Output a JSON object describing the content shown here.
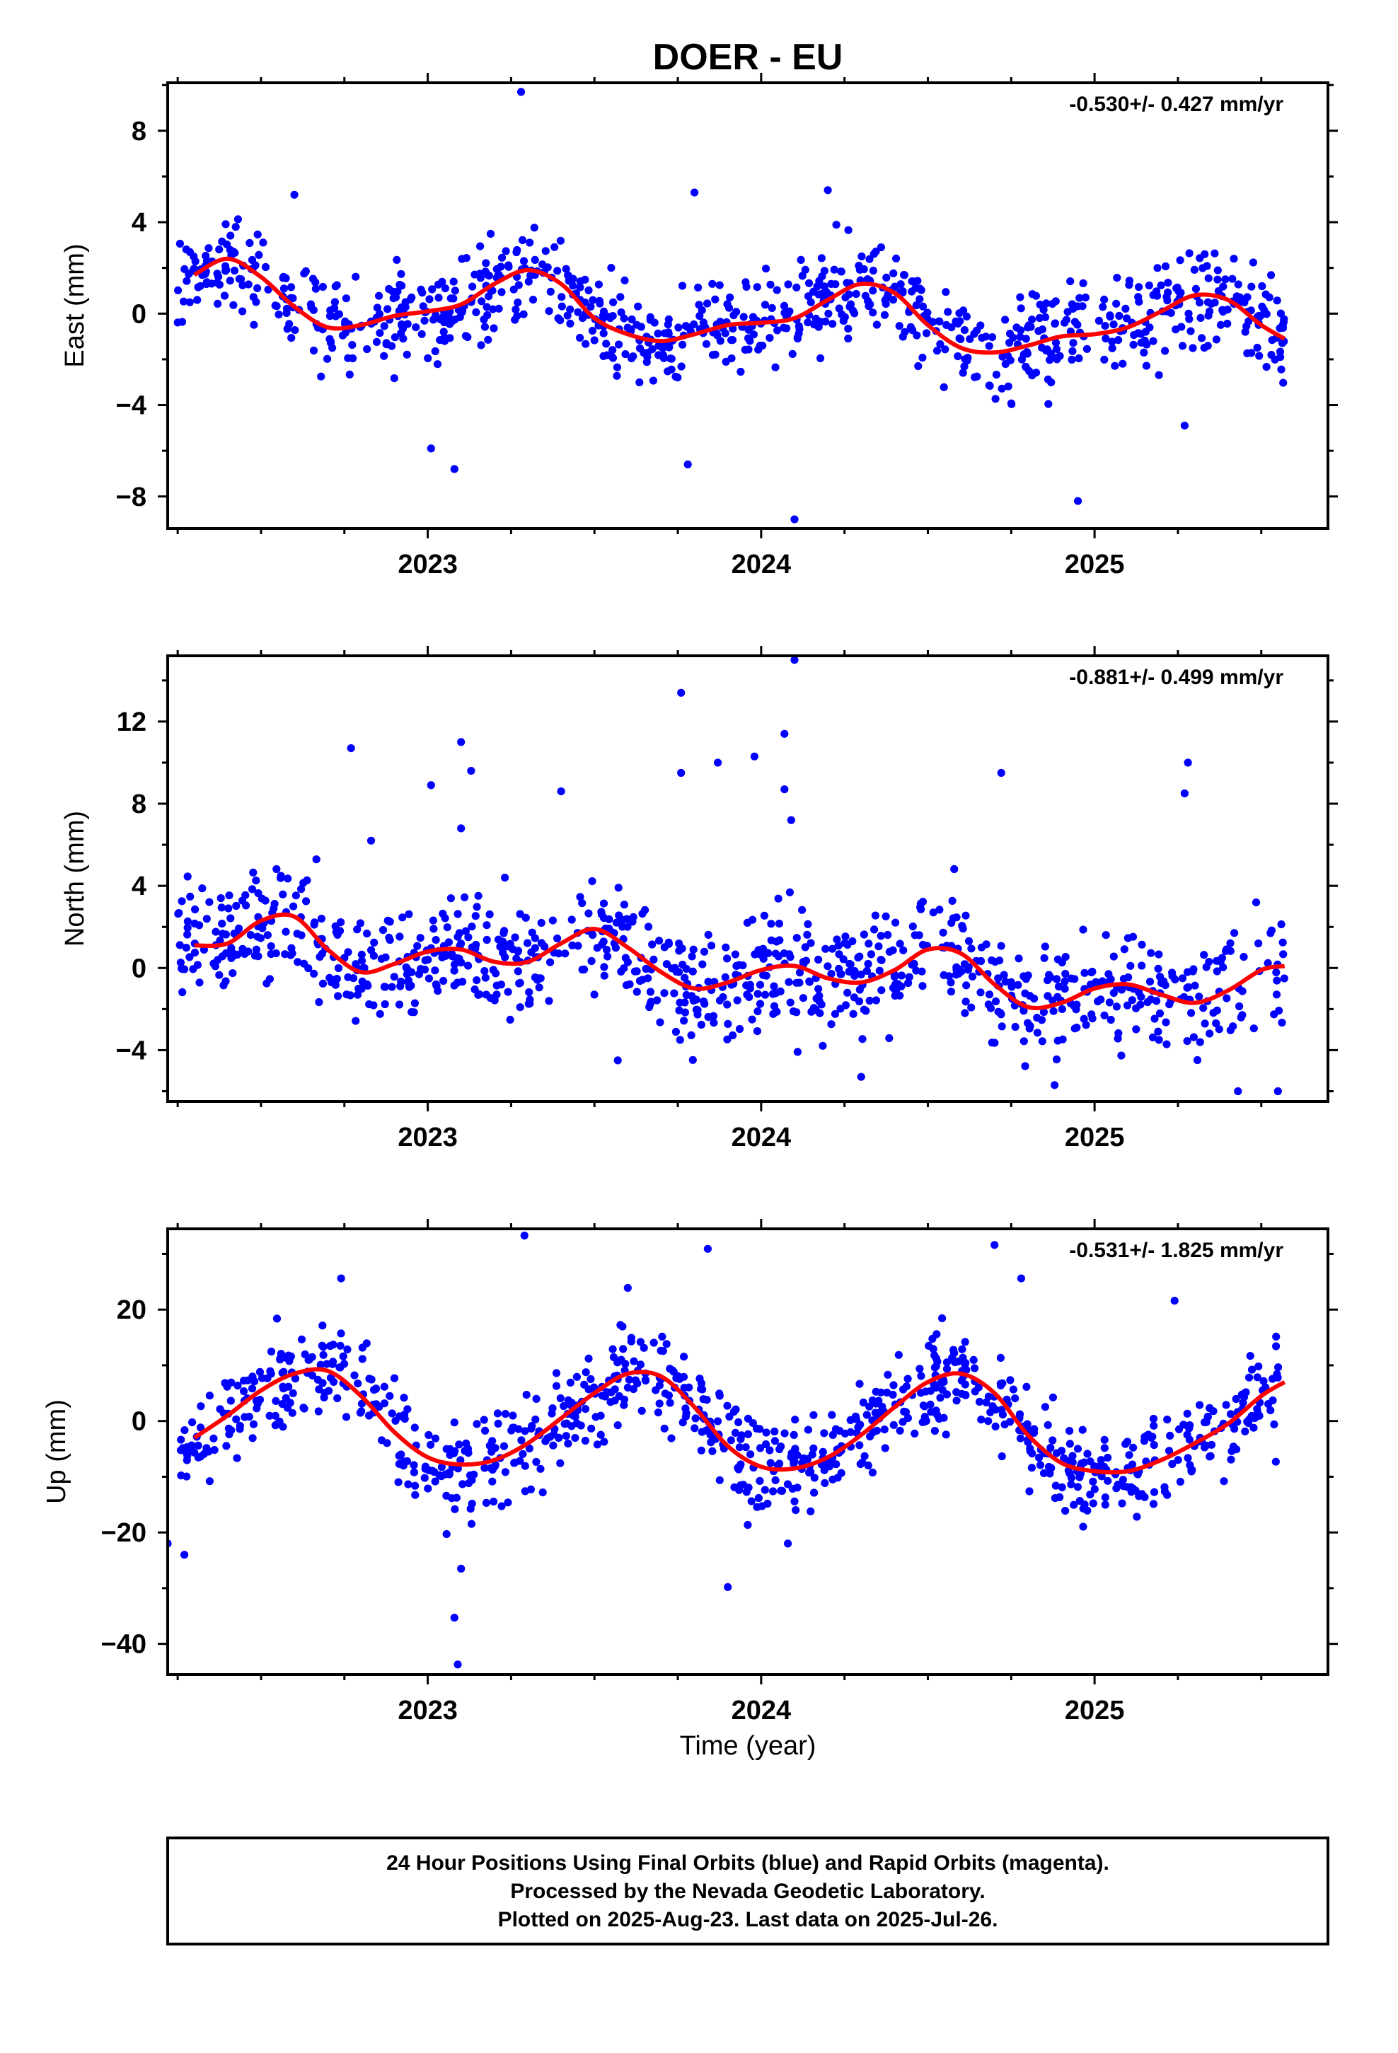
{
  "title": "DOER - EU",
  "footer": {
    "lines": [
      "24 Hour Positions Using Final Orbits (blue) and Rapid Orbits (magenta).",
      "Processed by the Nevada Geodetic Laboratory.",
      "Plotted on 2025-Aug-23. Last data on 2025-Jul-26."
    ]
  },
  "colors": {
    "points": "#0000ff",
    "fit": "#ff0000",
    "frame": "#000000"
  },
  "chart_data": [
    {
      "type": "scatter",
      "ylabel": "East (mm)",
      "xlabel": "",
      "xlim": [
        2022.22,
        2025.7
      ],
      "ylim": [
        -9.4,
        10.1
      ],
      "yticks": [
        -8,
        -4,
        0,
        4,
        8
      ],
      "ytick_labels": [
        "−8",
        "−4",
        "0",
        "4",
        "8"
      ],
      "xticks": [
        2023,
        2024,
        2025
      ],
      "xtick_labels": [
        "2023",
        "2024",
        "2025"
      ],
      "rate_label": "-0.530+/- 0.427 mm/yr",
      "fit": {
        "x": [
          2022.3,
          2022.4,
          2022.5,
          2022.6,
          2022.7,
          2022.8,
          2022.9,
          2023.0,
          2023.1,
          2023.2,
          2023.3,
          2023.4,
          2023.5,
          2023.6,
          2023.7,
          2023.8,
          2023.9,
          2024.0,
          2024.1,
          2024.2,
          2024.3,
          2024.4,
          2024.5,
          2024.6,
          2024.7,
          2024.8,
          2024.9,
          2025.0,
          2025.1,
          2025.2,
          2025.3,
          2025.4,
          2025.5,
          2025.57
        ],
        "y": [
          1.7,
          2.4,
          1.6,
          0.3,
          -0.6,
          -0.5,
          -0.1,
          0.1,
          0.4,
          1.3,
          1.9,
          1.3,
          -0.2,
          -0.9,
          -1.2,
          -0.9,
          -0.5,
          -0.4,
          -0.2,
          0.6,
          1.3,
          0.9,
          -0.5,
          -1.5,
          -1.7,
          -1.4,
          -1.0,
          -0.9,
          -0.6,
          0.1,
          0.8,
          0.6,
          -0.5,
          -1.1
        ]
      },
      "outliers": [
        [
          2023.28,
          9.7
        ],
        [
          2023.01,
          -5.9
        ],
        [
          2023.08,
          -6.8
        ],
        [
          2023.78,
          -6.6
        ],
        [
          2024.1,
          -9.0
        ],
        [
          2024.95,
          -8.2
        ],
        [
          2025.27,
          -4.9
        ],
        [
          2023.8,
          5.3
        ],
        [
          2024.2,
          5.4
        ],
        [
          2022.6,
          5.2
        ]
      ],
      "seed": 11,
      "noise": 1.05,
      "n_points": 900
    },
    {
      "type": "scatter",
      "ylabel": "North (mm)",
      "xlabel": "",
      "xlim": [
        2022.22,
        2025.7
      ],
      "ylim": [
        -6.5,
        15.2
      ],
      "yticks": [
        -4,
        0,
        4,
        8,
        12
      ],
      "ytick_labels": [
        "−4",
        "0",
        "4",
        "8",
        "12"
      ],
      "xticks": [
        2023,
        2024,
        2025
      ],
      "xtick_labels": [
        "2023",
        "2024",
        "2025"
      ],
      "rate_label": "-0.881+/- 0.499 mm/yr",
      "fit": {
        "x": [
          2022.3,
          2022.4,
          2022.5,
          2022.6,
          2022.7,
          2022.8,
          2022.9,
          2023.0,
          2023.1,
          2023.2,
          2023.3,
          2023.4,
          2023.5,
          2023.6,
          2023.7,
          2023.8,
          2023.9,
          2024.0,
          2024.1,
          2024.2,
          2024.3,
          2024.4,
          2024.5,
          2024.6,
          2024.7,
          2024.8,
          2024.9,
          2025.0,
          2025.1,
          2025.2,
          2025.3,
          2025.4,
          2025.5,
          2025.57
        ],
        "y": [
          1.1,
          1.2,
          2.3,
          2.5,
          0.9,
          -0.2,
          0.2,
          0.8,
          0.9,
          0.3,
          0.3,
          1.2,
          1.9,
          1.0,
          -0.2,
          -1.0,
          -0.7,
          -0.1,
          0.1,
          -0.5,
          -0.7,
          -0.1,
          0.9,
          0.7,
          -0.8,
          -1.9,
          -1.7,
          -1.0,
          -0.8,
          -1.3,
          -1.7,
          -1.1,
          -0.1,
          0.1
        ]
      },
      "outliers": [
        [
          2022.77,
          10.7
        ],
        [
          2022.83,
          6.2
        ],
        [
          2023.01,
          8.9
        ],
        [
          2023.1,
          11.0
        ],
        [
          2023.13,
          9.6
        ],
        [
          2023.4,
          8.6
        ],
        [
          2023.76,
          13.4
        ],
        [
          2023.76,
          9.5
        ],
        [
          2023.87,
          10.0
        ],
        [
          2023.98,
          10.3
        ],
        [
          2024.07,
          11.4
        ],
        [
          2024.1,
          15.0
        ],
        [
          2024.07,
          8.7
        ],
        [
          2024.09,
          7.2
        ],
        [
          2024.72,
          9.5
        ],
        [
          2025.28,
          10.0
        ],
        [
          2025.27,
          8.5
        ],
        [
          2023.1,
          6.8
        ],
        [
          2023.57,
          -4.5
        ],
        [
          2024.3,
          -5.3
        ],
        [
          2025.43,
          -6.0
        ],
        [
          2025.55,
          -6.0
        ],
        [
          2024.88,
          -5.7
        ]
      ],
      "seed": 23,
      "noise": 1.4,
      "n_points": 900
    },
    {
      "type": "scatter",
      "ylabel": "Up (mm)",
      "xlabel": "Time (year)",
      "xlim": [
        2022.22,
        2025.7
      ],
      "ylim": [
        -45.5,
        34.5
      ],
      "yticks": [
        -40,
        -20,
        0,
        20
      ],
      "ytick_labels": [
        "−40",
        "−20",
        "0",
        "20"
      ],
      "xticks": [
        2023,
        2024,
        2025
      ],
      "xtick_labels": [
        "2023",
        "2024",
        "2025"
      ],
      "rate_label": "-0.531+/- 1.825 mm/yr",
      "fit": {
        "x": [
          2022.3,
          2022.4,
          2022.5,
          2022.6,
          2022.7,
          2022.8,
          2022.9,
          2023.0,
          2023.1,
          2023.2,
          2023.3,
          2023.4,
          2023.5,
          2023.6,
          2023.7,
          2023.8,
          2023.9,
          2024.0,
          2024.1,
          2024.2,
          2024.3,
          2024.4,
          2024.5,
          2024.6,
          2024.7,
          2024.8,
          2024.9,
          2025.0,
          2025.1,
          2025.2,
          2025.3,
          2025.4,
          2025.5,
          2025.57
        ],
        "y": [
          -3.0,
          1.0,
          5.5,
          8.5,
          9.0,
          4.5,
          -2.0,
          -6.5,
          -7.8,
          -7.0,
          -4.0,
          0.5,
          5.0,
          8.5,
          8.0,
          2.5,
          -4.5,
          -8.2,
          -8.5,
          -6.5,
          -2.5,
          2.5,
          7.0,
          8.5,
          5.0,
          -2.5,
          -7.5,
          -9.0,
          -9.0,
          -7.0,
          -4.0,
          -0.5,
          4.5,
          7.0
        ]
      },
      "outliers": [
        [
          2023.29,
          33.3
        ],
        [
          2023.84,
          30.9
        ],
        [
          2024.7,
          31.6
        ],
        [
          2024.78,
          25.6
        ],
        [
          2022.74,
          25.6
        ],
        [
          2023.08,
          -35.3
        ],
        [
          2023.09,
          -43.7
        ],
        [
          2023.1,
          -26.5
        ],
        [
          2023.9,
          -29.8
        ],
        [
          2024.08,
          -22.0
        ],
        [
          2022.27,
          -24.0
        ],
        [
          2022.22,
          -22.0
        ],
        [
          2025.24,
          21.6
        ],
        [
          2023.6,
          23.9
        ]
      ],
      "seed": 37,
      "noise": 4.3,
      "n_points": 900
    }
  ]
}
